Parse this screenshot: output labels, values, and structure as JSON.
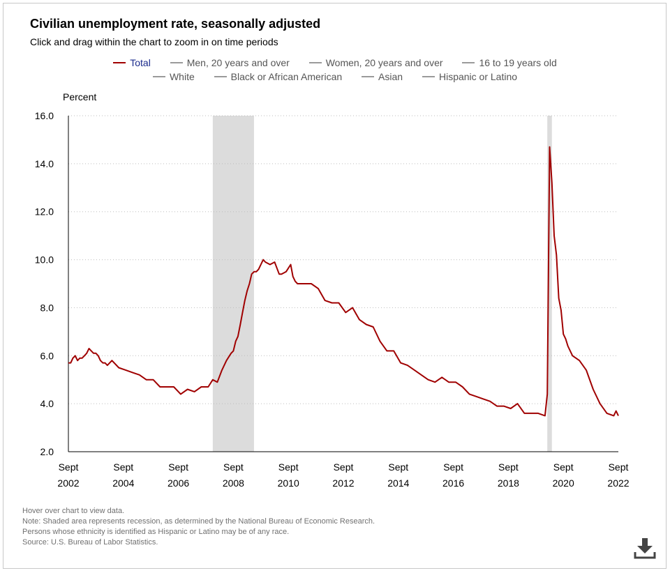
{
  "header": {
    "title": "Civilian unemployment rate, seasonally adjusted",
    "subtitle": "Click and drag within the chart to zoom in on time periods"
  },
  "legend": {
    "rows": [
      [
        "Total",
        "Men, 20 years and over",
        "Women, 20 years and over",
        "16 to 19 years old"
      ],
      [
        "White",
        "Black or African American",
        "Asian",
        "Hispanic or Latino"
      ]
    ],
    "active": "Total"
  },
  "colors": {
    "total_line": "#a00000",
    "recession": "#dcdcdc",
    "active_legend_text": "#1a2a8c",
    "inactive": "#9a9a9a"
  },
  "notes": [
    "Hover over chart to view data.",
    "Note: Shaded area represents recession, as determined by the National Bureau of Economic Research.",
    "Persons whose ethnicity is identified as Hispanic or Latino may be of any race.",
    "Source: U.S. Bureau of Labor Statistics."
  ],
  "download_icon": "download-icon",
  "chart_data": {
    "type": "line",
    "title": "Civilian unemployment rate, seasonally adjusted",
    "ylabel": "Percent",
    "xlabel": "",
    "ylim": [
      2.0,
      16.0
    ],
    "yticks": [
      "16.0",
      "14.0",
      "12.0",
      "10.0",
      "8.0",
      "6.0",
      "4.0",
      "2.0"
    ],
    "xlim": [
      2002.667,
      2022.667
    ],
    "xticks": [
      {
        "month": "Sept",
        "year": "2002"
      },
      {
        "month": "Sept",
        "year": "2004"
      },
      {
        "month": "Sept",
        "year": "2006"
      },
      {
        "month": "Sept",
        "year": "2008"
      },
      {
        "month": "Sept",
        "year": "2010"
      },
      {
        "month": "Sept",
        "year": "2012"
      },
      {
        "month": "Sept",
        "year": "2014"
      },
      {
        "month": "Sept",
        "year": "2016"
      },
      {
        "month": "Sept",
        "year": "2018"
      },
      {
        "month": "Sept",
        "year": "2020"
      },
      {
        "month": "Sept",
        "year": "2022"
      }
    ],
    "grid": true,
    "recessions": [
      [
        2007.917,
        2009.417
      ],
      [
        2020.083,
        2020.25
      ]
    ],
    "series": [
      {
        "name": "Total",
        "x": [
          2002.667,
          2002.75,
          2002.833,
          2002.917,
          2003.0,
          2003.083,
          2003.167,
          2003.25,
          2003.333,
          2003.417,
          2003.5,
          2003.583,
          2003.667,
          2003.75,
          2003.833,
          2003.917,
          2004.0,
          2004.083,
          2004.25,
          2004.5,
          2004.75,
          2005.0,
          2005.25,
          2005.5,
          2005.75,
          2006.0,
          2006.25,
          2006.5,
          2006.75,
          2007.0,
          2007.25,
          2007.5,
          2007.667,
          2007.75,
          2007.917,
          2008.083,
          2008.25,
          2008.417,
          2008.583,
          2008.667,
          2008.75,
          2008.833,
          2008.917,
          2009.0,
          2009.083,
          2009.167,
          2009.25,
          2009.333,
          2009.417,
          2009.5,
          2009.583,
          2009.667,
          2009.75,
          2009.833,
          2010.0,
          2010.167,
          2010.333,
          2010.417,
          2010.583,
          2010.75,
          2010.833,
          2010.917,
          2011.0,
          2011.25,
          2011.5,
          2011.75,
          2012.0,
          2012.25,
          2012.5,
          2012.75,
          2013.0,
          2013.25,
          2013.5,
          2013.75,
          2014.0,
          2014.25,
          2014.5,
          2014.75,
          2015.0,
          2015.25,
          2015.5,
          2015.75,
          2016.0,
          2016.25,
          2016.5,
          2016.75,
          2017.0,
          2017.25,
          2017.5,
          2017.75,
          2018.0,
          2018.25,
          2018.5,
          2018.75,
          2019.0,
          2019.25,
          2019.5,
          2019.75,
          2020.0,
          2020.083,
          2020.167,
          2020.25,
          2020.333,
          2020.417,
          2020.5,
          2020.583,
          2020.667,
          2020.75,
          2020.833,
          2021.0,
          2021.25,
          2021.5,
          2021.75,
          2022.0,
          2022.25,
          2022.5,
          2022.583,
          2022.667
        ],
        "values": [
          5.7,
          5.7,
          5.9,
          6.0,
          5.8,
          5.9,
          5.9,
          6.0,
          6.1,
          6.3,
          6.2,
          6.1,
          6.1,
          6.0,
          5.8,
          5.7,
          5.7,
          5.6,
          5.8,
          5.5,
          5.4,
          5.3,
          5.2,
          5.0,
          5.0,
          4.7,
          4.7,
          4.7,
          4.4,
          4.6,
          4.5,
          4.7,
          4.7,
          4.7,
          5.0,
          4.9,
          5.4,
          5.8,
          6.1,
          6.2,
          6.6,
          6.8,
          7.3,
          7.8,
          8.3,
          8.7,
          9.0,
          9.4,
          9.5,
          9.5,
          9.6,
          9.8,
          10.0,
          9.9,
          9.8,
          9.9,
          9.4,
          9.4,
          9.5,
          9.8,
          9.3,
          9.1,
          9.0,
          9.0,
          9.0,
          8.8,
          8.3,
          8.2,
          8.2,
          7.8,
          8.0,
          7.5,
          7.3,
          7.2,
          6.6,
          6.2,
          6.2,
          5.7,
          5.6,
          5.4,
          5.2,
          5.0,
          4.9,
          5.1,
          4.9,
          4.9,
          4.7,
          4.4,
          4.3,
          4.2,
          4.1,
          3.9,
          3.9,
          3.8,
          4.0,
          3.6,
          3.6,
          3.6,
          3.5,
          4.4,
          14.7,
          13.2,
          11.0,
          10.2,
          8.4,
          7.9,
          6.9,
          6.7,
          6.4,
          6.0,
          5.8,
          5.4,
          4.6,
          4.0,
          3.6,
          3.5,
          3.7,
          3.5
        ]
      },
      {
        "name": "Men, 20 years and over",
        "visible": false
      },
      {
        "name": "Women, 20 years and over",
        "visible": false
      },
      {
        "name": "16 to 19 years old",
        "visible": false
      },
      {
        "name": "White",
        "visible": false
      },
      {
        "name": "Black or African American",
        "visible": false
      },
      {
        "name": "Asian",
        "visible": false
      },
      {
        "name": "Hispanic or Latino",
        "visible": false
      }
    ]
  }
}
